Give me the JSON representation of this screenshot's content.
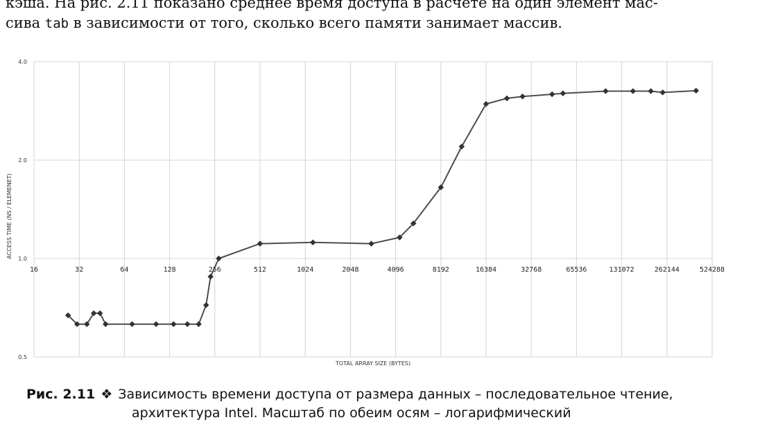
{
  "text": {
    "line1": "кэша. На рис. 2.11 показано среднее время доступа в расчете на один элемент мас-",
    "line2_a": "сива ",
    "line2_code": "tab",
    "line2_b": " в зависимости от того, сколько всего памяти занимает массив."
  },
  "caption": {
    "number": "Рис. 2.11",
    "symbol": "❖",
    "line1": "Зависимость времени доступа от размера данных – последовательное чтение,",
    "line2": "архитектура Intel. Масштаб по обеим осям – логарифмический"
  },
  "chart_data": {
    "type": "line",
    "title": "",
    "xlabel": "TOTAL ARRAY SIZE (BYTES)",
    "ylabel": "ACCESS TIME (NS / ELEMENET)",
    "xscale": "log2",
    "yscale": "log",
    "xlim": [
      16,
      524288
    ],
    "ylim": [
      0.5,
      4.0
    ],
    "x_tick_labels": [
      "16",
      "32",
      "64",
      "128",
      "256",
      "512",
      "1024",
      "2048",
      "4096",
      "8192",
      "16384",
      "32768",
      "65536",
      "131072",
      "262144",
      "524288"
    ],
    "y_tick_labels": [
      "0.5",
      "1.0",
      "2.0",
      "4.0"
    ],
    "grid": true,
    "series": [
      {
        "color": "#4d4d4d",
        "marker": "diamond",
        "x": [
          27,
          31,
          36,
          40,
          44,
          48,
          72,
          104,
          136,
          168,
          200,
          224,
          240,
          272,
          512,
          1152,
          2816,
          4352,
          5376,
          8192,
          11264,
          16384,
          22528,
          28672,
          45056,
          53248,
          102400,
          155648,
          204800,
          245760,
          409600
        ],
        "values": [
          0.67,
          0.63,
          0.63,
          0.68,
          0.68,
          0.63,
          0.63,
          0.63,
          0.63,
          0.63,
          0.63,
          0.72,
          0.88,
          1.0,
          1.11,
          1.12,
          1.11,
          1.16,
          1.28,
          1.65,
          2.2,
          2.97,
          3.09,
          3.13,
          3.18,
          3.2,
          3.25,
          3.25,
          3.25,
          3.22,
          3.26
        ]
      }
    ]
  }
}
